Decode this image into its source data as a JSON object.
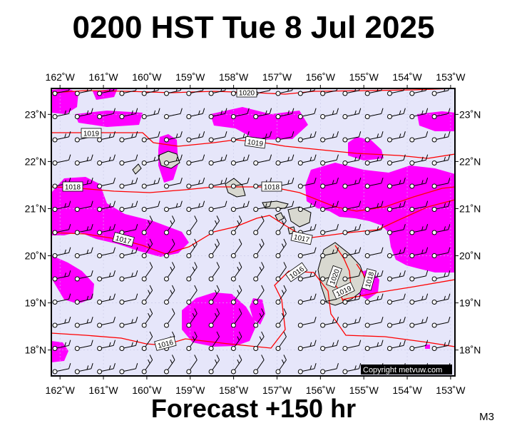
{
  "title": "0200 HST Tue 8 Jul 2025",
  "footer": "Forecast +150 hr",
  "code": "M3",
  "copyright": "Copyright metvuw.com",
  "colors": {
    "ocean": "#e6e6fa",
    "rain": "#ff00ff",
    "isobar": "#ff0000",
    "land": "#d8d8d0",
    "barb": "#000000"
  },
  "map": {
    "lon_range": [
      -162.2,
      -152.9
    ],
    "lat_range": [
      17.45,
      23.55
    ],
    "lon_ticks": [
      {
        "v": -162,
        "t": "162˚W"
      },
      {
        "v": -161,
        "t": "161˚W"
      },
      {
        "v": -160,
        "t": "160˚W"
      },
      {
        "v": -159,
        "t": "159˚W"
      },
      {
        "v": -158,
        "t": "158˚W"
      },
      {
        "v": -157,
        "t": "157˚W"
      },
      {
        "v": -156,
        "t": "156˚W"
      },
      {
        "v": -155,
        "t": "155˚W"
      },
      {
        "v": -154,
        "t": "154˚W"
      },
      {
        "v": -153,
        "t": "153˚W"
      }
    ],
    "lat_ticks": [
      {
        "v": 23,
        "t": "23˚N"
      },
      {
        "v": 22,
        "t": "22˚N"
      },
      {
        "v": 21,
        "t": "21˚N"
      },
      {
        "v": 20,
        "t": "20˚N"
      },
      {
        "v": 19,
        "t": "19˚N"
      },
      {
        "v": 18,
        "t": "18˚N"
      }
    ],
    "isobar_labels": [
      "1020",
      "1019",
      "1019",
      "1018",
      "1018",
      "1017",
      "1017",
      "1016",
      "1016",
      "1020",
      "1019",
      "1018"
    ]
  }
}
